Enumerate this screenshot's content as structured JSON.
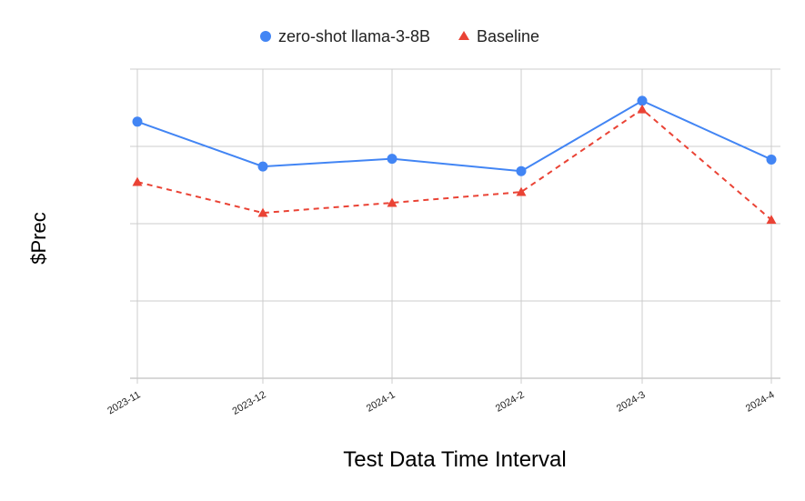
{
  "chart_data": {
    "type": "line",
    "title": "",
    "xlabel": "Test Data Time Interval",
    "ylabel": "$Prec",
    "categories": [
      "2023-11",
      "2023-12",
      "2024-1",
      "2024-2",
      "2024-3",
      "2024-4"
    ],
    "ylim": [
      0,
      4
    ],
    "y_ticks_shown": false,
    "grid": true,
    "legend_position": "top",
    "series": [
      {
        "name": "zero-shot llama-3-8B",
        "values": [
          3.32,
          2.74,
          2.84,
          2.68,
          3.59,
          2.83
        ],
        "color": "#4285f4",
        "marker": "circle",
        "line_style": "solid"
      },
      {
        "name": "Baseline",
        "values": [
          2.54,
          2.14,
          2.27,
          2.41,
          3.48,
          2.05
        ],
        "color": "#ea4335",
        "marker": "triangle",
        "line_style": "dashed"
      }
    ]
  }
}
